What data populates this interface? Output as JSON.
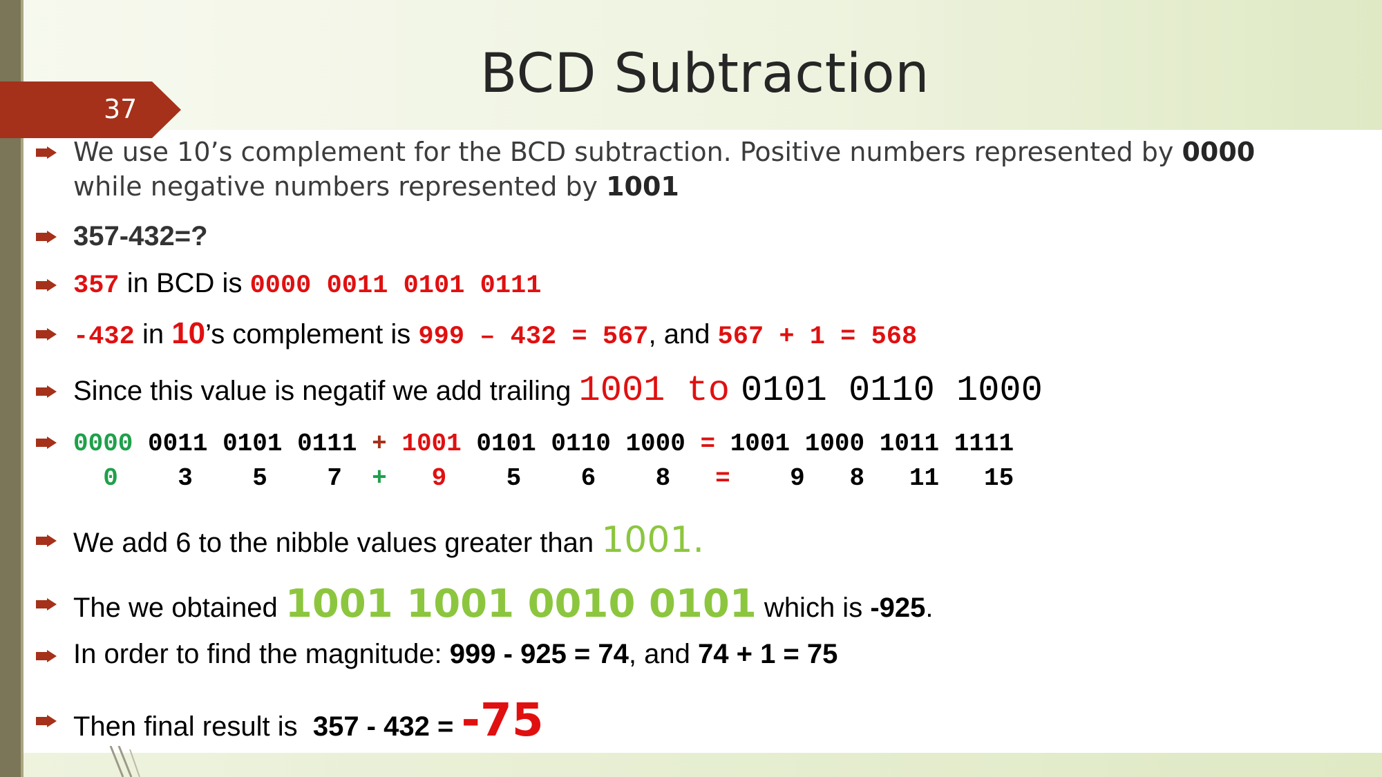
{
  "slide": {
    "title": "BCD Subtraction",
    "page_number": "37"
  },
  "bullets": {
    "b1": {
      "text_a": "We use 10’s complement for the BCD subtraction. Positive numbers represented by ",
      "bold_a": "0000",
      "text_b": "while negative numbers represented by ",
      "bold_b": "1001"
    },
    "b2": {
      "text": "357-432=?"
    },
    "b3": {
      "num": "357",
      "text": " in BCD is ",
      "bcd": "0000 0011 0101 0111"
    },
    "b4": {
      "num": "-432",
      "text_a": " in ",
      "ten": "10",
      "text_b": "’s complement is ",
      "calc1": "999 – 432 = 567",
      "text_c": ", and ",
      "calc2": "567 + 1 = 568"
    },
    "b5": {
      "text": "Since this value is negatif we add trailing ",
      "red_part": "1001 to",
      "black_part": "0101 0110 1000"
    },
    "b6": {
      "nibbles_top": [
        "0000",
        "0011",
        "0101",
        "0111",
        "+",
        "1001",
        "0101",
        "0110",
        "1000",
        "=",
        "1001",
        "1000",
        "1011",
        "1111"
      ],
      "digits_bottom": [
        "0",
        "3",
        "5",
        "7",
        "+",
        "9",
        "5",
        "6",
        "8",
        "=",
        "9",
        "8",
        "11",
        "15"
      ]
    },
    "b7": {
      "text": "We add 6 to the nibble values greater than ",
      "value": "1001."
    },
    "b8": {
      "text_a": "The we obtained ",
      "value": "1001 1001 0010 0101",
      "text_b": " which is ",
      "result": "-925",
      "end": "."
    },
    "b9": {
      "text_a": "In order to find the magnitude: ",
      "calc1": "999 - 925 = 74",
      "text_b": ", and ",
      "calc2": "74 + 1 = 75"
    },
    "b10": {
      "text_a": "Then final result is  ",
      "calc": "357 - 432 = ",
      "result": "-75"
    }
  },
  "colors": {
    "accent_red": "#e01010",
    "accent_green": "#1fa04a",
    "light_green": "#8cc63f",
    "badge": "#a5311a",
    "bullet": "#a5311a"
  }
}
